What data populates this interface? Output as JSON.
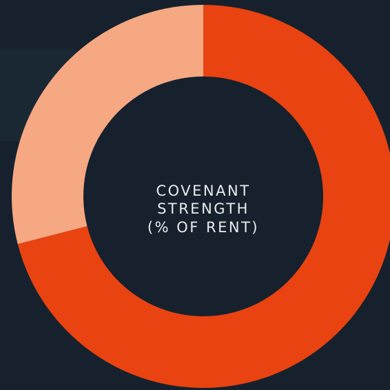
{
  "chart_data": {
    "type": "pie",
    "title": [
      "COVENANT",
      "STRENGTH",
      "(% OF RENT)"
    ],
    "categories": [
      null,
      null
    ],
    "values": [
      71,
      29
    ],
    "colors": [
      "#e84311",
      "#f5a882"
    ],
    "donut": true
  }
}
